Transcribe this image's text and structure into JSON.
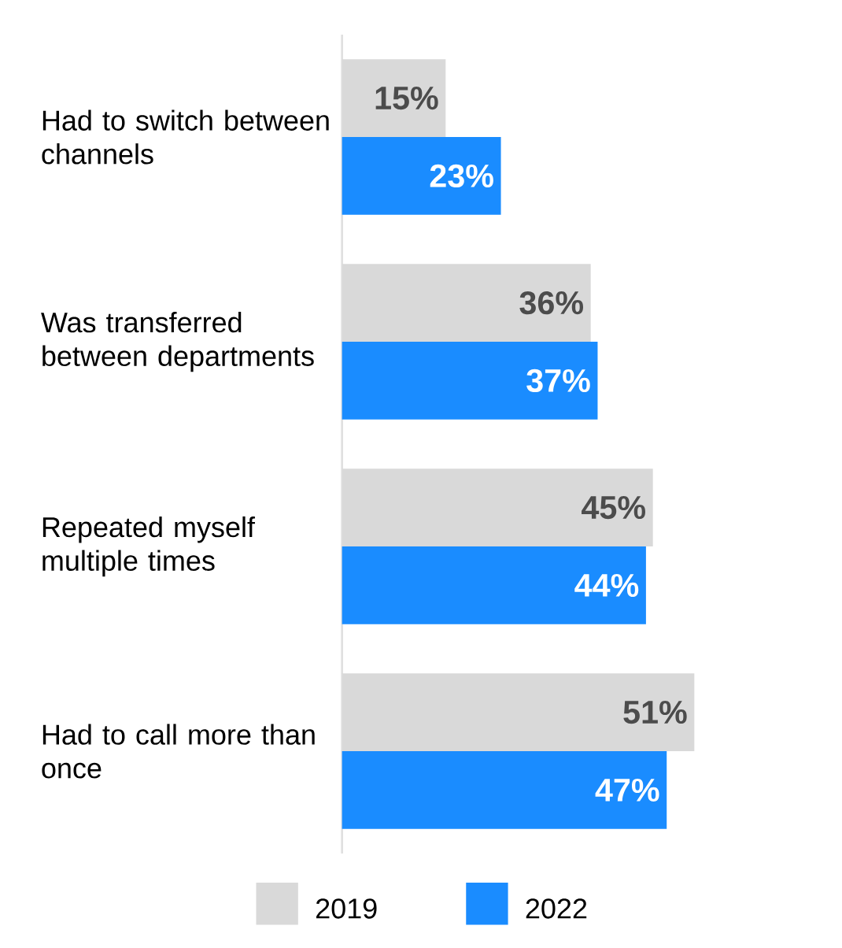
{
  "chart_data": {
    "type": "bar",
    "orientation": "horizontal",
    "categories": [
      "Had to switch between channels",
      "Was transferred between departments",
      "Repeated myself multiple times",
      "Had to call more than once"
    ],
    "series": [
      {
        "name": "2019",
        "color": "#d9d9d9",
        "values": [
          15,
          36,
          45,
          51
        ],
        "value_labels": [
          "15%",
          "36%",
          "45%",
          "51%"
        ]
      },
      {
        "name": "2022",
        "color": "#1a8cff",
        "values": [
          23,
          37,
          44,
          47
        ],
        "value_labels": [
          "23%",
          "37%",
          "44%",
          "47%"
        ]
      }
    ],
    "legend": "bottom"
  }
}
